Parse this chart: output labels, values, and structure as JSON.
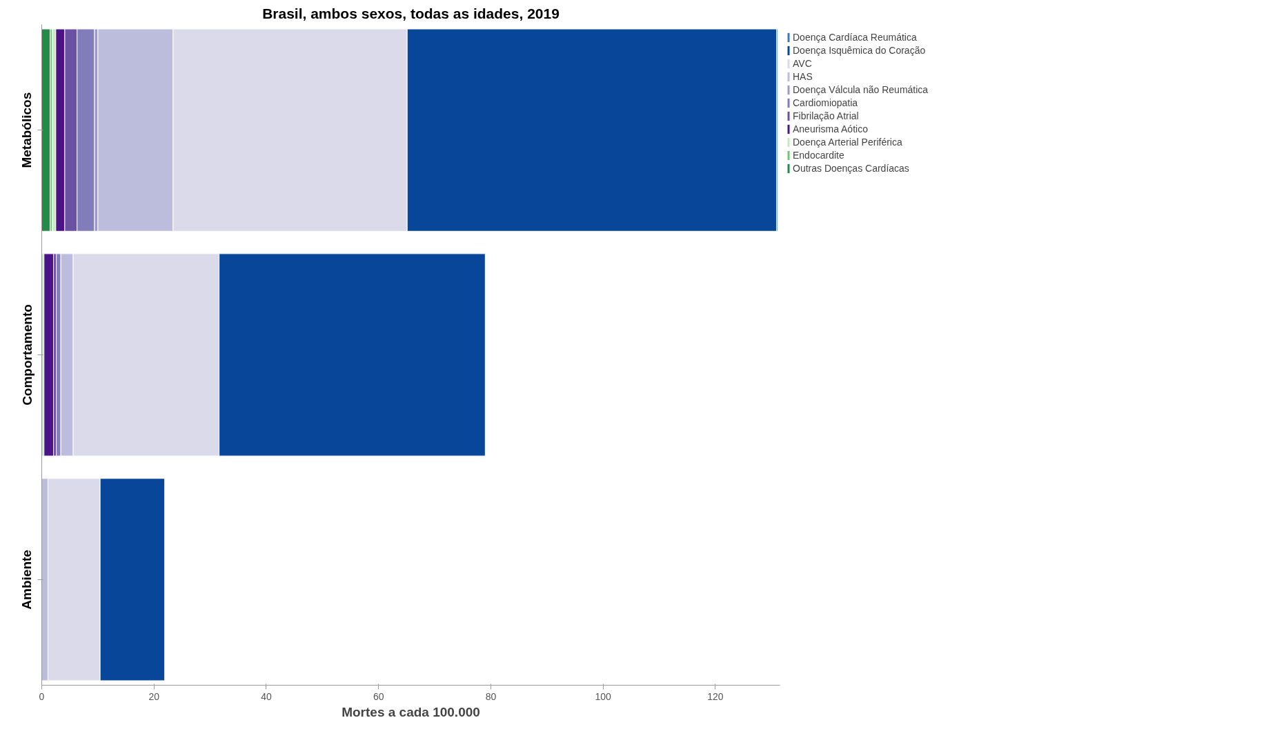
{
  "chart_data": {
    "type": "bar",
    "orientation": "horizontal",
    "stacked": true,
    "title": "Brasil, ambos sexos, todas as idades, 2019",
    "xlabel": "Mortes a cada 100.000",
    "categories": [
      "Metabólicos",
      "Comportamento",
      "Ambiente"
    ],
    "series": [
      {
        "name": "Outras Doenças Cardíacas",
        "color": "#238b45",
        "values": [
          1.5,
          null,
          null
        ]
      },
      {
        "name": "Endocardite",
        "color": "#74c476",
        "values": [
          0.4,
          null,
          null
        ]
      },
      {
        "name": "Doença Arterial Periférica",
        "color": "#c7e9c0",
        "values": [
          0.6,
          0.4,
          null
        ]
      },
      {
        "name": "Aneurisma Aótico",
        "color": "#4a1486",
        "values": [
          1.6,
          1.7,
          null
        ]
      },
      {
        "name": "Fibrilação Atrial",
        "color": "#6a51a3",
        "values": [
          2.2,
          0.5,
          null
        ]
      },
      {
        "name": "Cardiomiopatia",
        "color": "#807dba",
        "values": [
          3.1,
          0.8,
          null
        ]
      },
      {
        "name": "Doença Válcula não Reumática",
        "color": "#9e9ac8",
        "values": [
          0.6,
          null,
          null
        ]
      },
      {
        "name": "HAS",
        "color": "#bcbddc",
        "values": [
          13.4,
          2.2,
          1.1
        ]
      },
      {
        "name": "AVC",
        "color": "#dadaeb",
        "values": [
          41.7,
          26.0,
          9.3
        ]
      },
      {
        "name": "Doença Isquêmica do Coração",
        "color": "#08469a",
        "values": [
          65.8,
          47.4,
          11.5
        ]
      },
      {
        "name": "Doença Cardíaca Reumática",
        "color": "#3a7ab8",
        "values": [
          0.2,
          null,
          null
        ]
      }
    ],
    "xlim": [
      0,
      131.5
    ],
    "xticks": [
      0,
      20,
      40,
      60,
      80,
      100,
      120
    ],
    "grid": false,
    "legend": "right"
  }
}
